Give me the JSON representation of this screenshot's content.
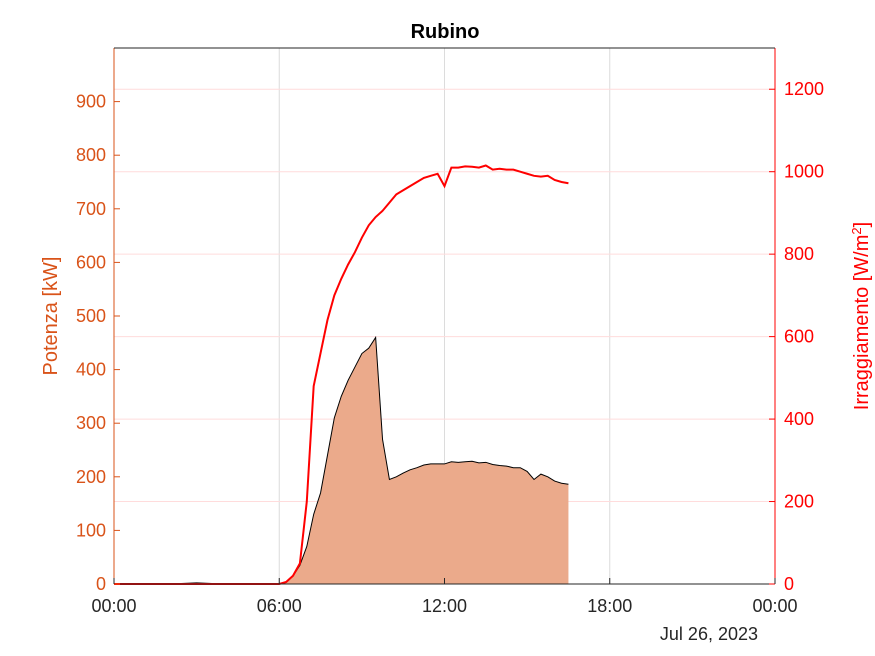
{
  "chart_data": {
    "type": "area",
    "title": "Rubino",
    "date_label": "Jul 26, 2023",
    "ylabel_left": "Potenza [kW]",
    "ylabel_right_main": "Irraggiamento [W/m",
    "ylabel_right_sup": "2",
    "ylabel_right_end": "]",
    "xlim_hours": [
      0,
      24
    ],
    "ylim_left": [
      0,
      1000
    ],
    "ylim_right": [
      0,
      1300
    ],
    "xticks": [
      {
        "hour": 0,
        "label": "00:00"
      },
      {
        "hour": 6,
        "label": "06:00"
      },
      {
        "hour": 12,
        "label": "12:00"
      },
      {
        "hour": 18,
        "label": "18:00"
      },
      {
        "hour": 24,
        "label": "00:00"
      }
    ],
    "yticks_left": [
      0,
      100,
      200,
      300,
      400,
      500,
      600,
      700,
      800,
      900
    ],
    "yticks_right": [
      0,
      200,
      400,
      600,
      800,
      1000,
      1200
    ],
    "grid": true,
    "colors": {
      "power_fill": "#EBAA8B",
      "power_edge": "#000000",
      "irradiance_line": "#FF0000",
      "left_axis": "#D95319",
      "right_axis": "#FF0000"
    },
    "series": [
      {
        "axis": "left",
        "kind": "area",
        "x": [
          0,
          1,
          2,
          3,
          4,
          5,
          6,
          6.25,
          6.5,
          6.75,
          7,
          7.25,
          7.5,
          7.75,
          8,
          8.25,
          8.5,
          8.75,
          9,
          9.25,
          9.5,
          9.75,
          10,
          10.25,
          10.5,
          10.75,
          11,
          11.25,
          11.5,
          11.75,
          12,
          12.25,
          12.5,
          12.75,
          13,
          13.25,
          13.5,
          13.75,
          14,
          14.25,
          14.5,
          14.75,
          15,
          15.25,
          15.5,
          15.75,
          16,
          16.25,
          16.5
        ],
        "values": [
          0,
          0,
          0,
          2,
          0,
          0,
          0,
          3,
          15,
          35,
          70,
          130,
          170,
          240,
          310,
          350,
          380,
          405,
          430,
          440,
          460,
          270,
          195,
          200,
          207,
          213,
          217,
          222,
          224,
          224,
          224,
          228,
          227,
          228,
          229,
          226,
          227,
          223,
          221,
          220,
          217,
          217,
          210,
          195,
          205,
          200,
          192,
          188,
          186
        ]
      },
      {
        "axis": "right",
        "kind": "line",
        "x": [
          0,
          6,
          6.25,
          6.5,
          6.75,
          7,
          7.25,
          7.5,
          7.75,
          8,
          8.25,
          8.5,
          8.75,
          9,
          9.25,
          9.5,
          9.75,
          10,
          10.25,
          10.5,
          10.75,
          11,
          11.25,
          11.5,
          11.75,
          12,
          12.25,
          12.5,
          12.75,
          13,
          13.25,
          13.5,
          13.75,
          14,
          14.25,
          14.5,
          14.75,
          15,
          15.25,
          15.5,
          15.75,
          16,
          16.25,
          16.5
        ],
        "values": [
          0,
          0,
          5,
          20,
          50,
          200,
          480,
          560,
          640,
          700,
          740,
          775,
          805,
          840,
          870,
          890,
          905,
          925,
          945,
          955,
          965,
          975,
          985,
          990,
          995,
          965,
          1010,
          1010,
          1013,
          1012,
          1010,
          1015,
          1005,
          1007,
          1005,
          1005,
          1000,
          995,
          990,
          988,
          990,
          980,
          975,
          972
        ]
      }
    ]
  }
}
